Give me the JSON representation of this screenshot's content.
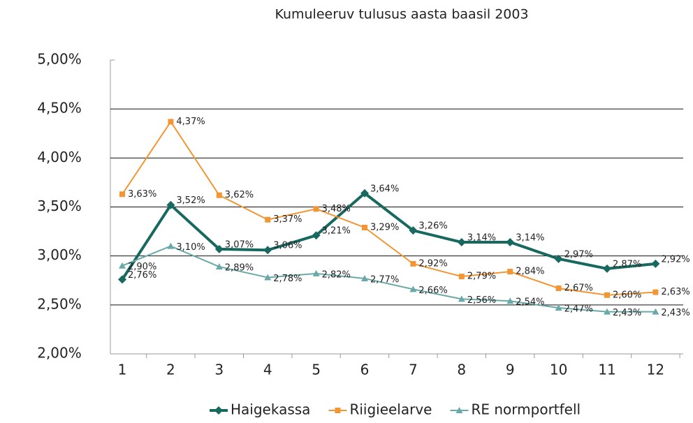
{
  "chart_data": {
    "type": "line",
    "title": "Kumuleeruv tulusus aasta baasil 2003",
    "categories": [
      "1",
      "2",
      "3",
      "4",
      "5",
      "6",
      "7",
      "8",
      "9",
      "10",
      "11",
      "12"
    ],
    "series": [
      {
        "name": "Haigekassa",
        "color": "#17695f",
        "marker": "diamond",
        "values": [
          2.76,
          3.52,
          3.07,
          3.06,
          3.21,
          3.64,
          3.26,
          3.14,
          3.14,
          2.97,
          2.87,
          2.92
        ],
        "value_labels": [
          "2,76%",
          "3,52%",
          "3,07%",
          "3,06%",
          "3,21%",
          "3,64%",
          "3,26%",
          "3,14%",
          "3,14%",
          "2,97%",
          "2,87%",
          "2,92%"
        ]
      },
      {
        "name": "Riigieelarve",
        "color": "#f39533",
        "marker": "square",
        "values": [
          3.63,
          4.37,
          3.62,
          3.37,
          3.48,
          3.29,
          2.92,
          2.79,
          2.84,
          2.67,
          2.6,
          2.63
        ],
        "value_labels": [
          "3,63%",
          "4,37%",
          "3,62%",
          "3,37%",
          "3,48%",
          "3,29%",
          "2,92%",
          "2,79%",
          "2,84%",
          "2,67%",
          "2,60%",
          "2,63%"
        ]
      },
      {
        "name": "RE normportfell",
        "color": "#6aa9a9",
        "marker": "triangle",
        "values": [
          2.9,
          3.1,
          2.89,
          2.78,
          2.82,
          2.77,
          2.66,
          2.56,
          2.54,
          2.47,
          2.43,
          2.43
        ],
        "value_labels": [
          "2,90%",
          "3,10%",
          "2,89%",
          "2,78%",
          "2,82%",
          "2,77%",
          "2,66%",
          "2,56%",
          "2,54%",
          "2,47%",
          "2,43%",
          "2,43%"
        ]
      }
    ],
    "ylim": [
      2,
      5
    ],
    "yticks": [
      {
        "value": 2,
        "label": "2,00%"
      },
      {
        "value": 2.5,
        "label": "2,50%"
      },
      {
        "value": 3,
        "label": "3,00%"
      },
      {
        "value": 3.5,
        "label": "3,50%"
      },
      {
        "value": 4,
        "label": "4,00%"
      },
      {
        "value": 4.5,
        "label": "4,50%"
      },
      {
        "value": 5,
        "label": "5,00%"
      }
    ],
    "grid": true,
    "legend": "bottom"
  }
}
